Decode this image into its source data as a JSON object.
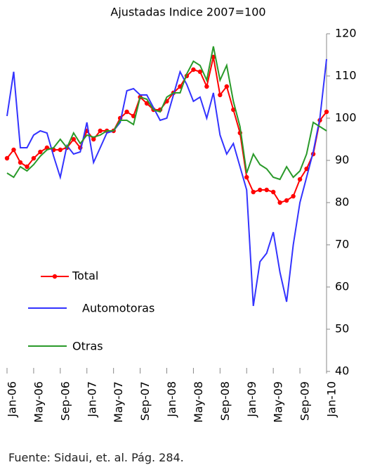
{
  "chart_data": {
    "type": "line",
    "title": "Ajustadas Indice 2007=100",
    "categories": [
      "Jan-06",
      null,
      null,
      null,
      "May-06",
      null,
      null,
      null,
      "Sep-06",
      null,
      null,
      null,
      "Jan-07",
      null,
      null,
      null,
      "May-07",
      null,
      null,
      null,
      "Sep-07",
      null,
      null,
      null,
      "Jan-08",
      null,
      null,
      null,
      "May-08",
      null,
      null,
      null,
      "Sep-08",
      null,
      null,
      null,
      "Jan-09",
      null,
      null,
      null,
      "May-09",
      null,
      null,
      null,
      "Sep-09",
      null,
      null,
      null,
      "Jan-10"
    ],
    "series": [
      {
        "name": "Total",
        "color": "#ff0000",
        "markers": true,
        "values": [
          90.5,
          92.5,
          89.5,
          88.5,
          90.5,
          92,
          93,
          92.5,
          92.5,
          93,
          95,
          93,
          97,
          95,
          97,
          97,
          97,
          100,
          101.5,
          100.5,
          105,
          103.5,
          102,
          102,
          104,
          106,
          107.5,
          110,
          111.5,
          111,
          107.5,
          114.5,
          105.5,
          107.5,
          102,
          96.5,
          86,
          82.5,
          83,
          83,
          82.5,
          80,
          80.5,
          81.5,
          85.5,
          88,
          91.5,
          99.5,
          101.5
        ]
      },
      {
        "name": "Automotoras",
        "color": "#3333ff",
        "markers": false,
        "values": [
          100.5,
          111,
          93,
          93,
          96,
          97,
          96.5,
          91,
          86,
          93.5,
          91.5,
          92,
          99,
          89.5,
          93,
          96.5,
          97,
          99,
          106.5,
          107,
          105.5,
          105.5,
          102.5,
          99.5,
          100,
          105.5,
          111,
          108,
          104,
          105,
          100,
          106,
          96,
          91.5,
          94,
          88.5,
          83,
          55.5,
          66,
          68,
          73,
          63.5,
          56.5,
          70,
          80,
          86,
          92,
          100,
          114
        ]
      },
      {
        "name": "Otras",
        "color": "#2a9a2a",
        "markers": false,
        "values": [
          87,
          86,
          88.5,
          87.5,
          89,
          91,
          92.5,
          93,
          95,
          93,
          96.5,
          94,
          96,
          95.5,
          96,
          97,
          97,
          99.5,
          99.5,
          98.5,
          105,
          104.5,
          102,
          101.5,
          105,
          106,
          106,
          110.5,
          113.5,
          112.5,
          109,
          117,
          109,
          112.5,
          104,
          98,
          87,
          91.5,
          89,
          88,
          86,
          85.5,
          88.5,
          86,
          87.5,
          91.5,
          99,
          98,
          97
        ]
      }
    ],
    "ylim": [
      40,
      120
    ],
    "yticks": [
      40,
      50,
      60,
      70,
      80,
      90,
      100,
      110,
      120
    ],
    "y_axis_side": "right",
    "legend": "bottom-left",
    "source": "Fuente: Sidaui, et. al. Pág. 284."
  }
}
